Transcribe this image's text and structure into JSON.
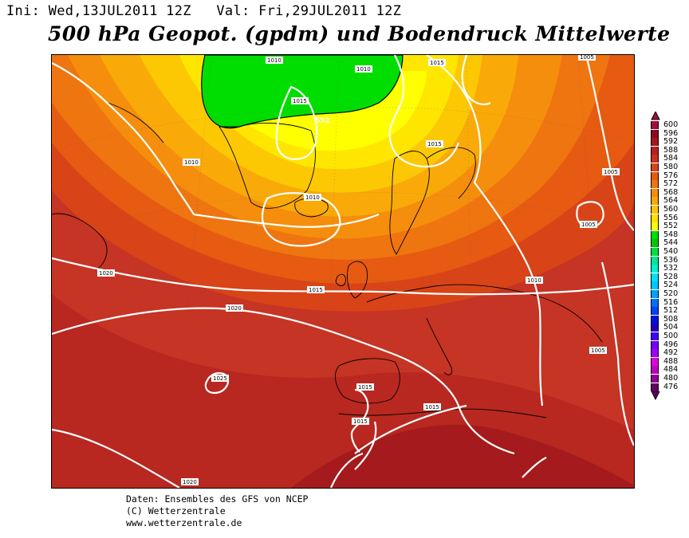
{
  "header": {
    "init_label": "Ini:",
    "init_value": "Wed,13JUL2011 12Z",
    "valid_label": "Val:",
    "valid_value": "Fri,29JUL2011 12Z"
  },
  "title": "500 hPa Geopot. (gpdm) und Bodendruck Mittelwerte",
  "map": {
    "isobar_labels": [
      "1010",
      "1010",
      "1015",
      "1015",
      "1015",
      "1010",
      "1010",
      "1005",
      "1005",
      "1005",
      "1020",
      "1020",
      "1015",
      "1010",
      "1025",
      "1015",
      "1015",
      "1015",
      "1005",
      "1020"
    ],
    "geopotential_label": "552"
  },
  "legend": {
    "levels": [
      {
        "value": "600",
        "color": "#a0103a"
      },
      {
        "value": "596",
        "color": "#8b0a20"
      },
      {
        "value": "592",
        "color": "#a51520"
      },
      {
        "value": "588",
        "color": "#b82020"
      },
      {
        "value": "584",
        "color": "#c83020"
      },
      {
        "value": "580",
        "color": "#d84418"
      },
      {
        "value": "576",
        "color": "#e85a10"
      },
      {
        "value": "572",
        "color": "#ef7410"
      },
      {
        "value": "568",
        "color": "#f58c0c"
      },
      {
        "value": "564",
        "color": "#f9a808"
      },
      {
        "value": "560",
        "color": "#fcc404"
      },
      {
        "value": "556",
        "color": "#ffe000"
      },
      {
        "value": "552",
        "color": "#ffff00"
      },
      {
        "value": "548",
        "color": "#00dd00"
      },
      {
        "value": "544",
        "color": "#00c800"
      },
      {
        "value": "540",
        "color": "#00e040"
      },
      {
        "value": "536",
        "color": "#00e890"
      },
      {
        "value": "532",
        "color": "#00f0d0"
      },
      {
        "value": "528",
        "color": "#00e0f0"
      },
      {
        "value": "524",
        "color": "#00c8ff"
      },
      {
        "value": "520",
        "color": "#00a0ff"
      },
      {
        "value": "516",
        "color": "#0070ff"
      },
      {
        "value": "512",
        "color": "#0040ff"
      },
      {
        "value": "508",
        "color": "#0010e0"
      },
      {
        "value": "504",
        "color": "#2000c0"
      },
      {
        "value": "500",
        "color": "#4000ff"
      },
      {
        "value": "496",
        "color": "#7000ff"
      },
      {
        "value": "492",
        "color": "#a000ff"
      },
      {
        "value": "488",
        "color": "#e000e0"
      },
      {
        "value": "484",
        "color": "#c000c0"
      },
      {
        "value": "480",
        "color": "#900090"
      },
      {
        "value": "476",
        "color": "#600060"
      }
    ]
  },
  "footer": {
    "line1": "Daten: Ensembles des GFS von NCEP",
    "line2": "(C) Wetterzentrale",
    "line3": "www.wetterzentrale.de"
  }
}
